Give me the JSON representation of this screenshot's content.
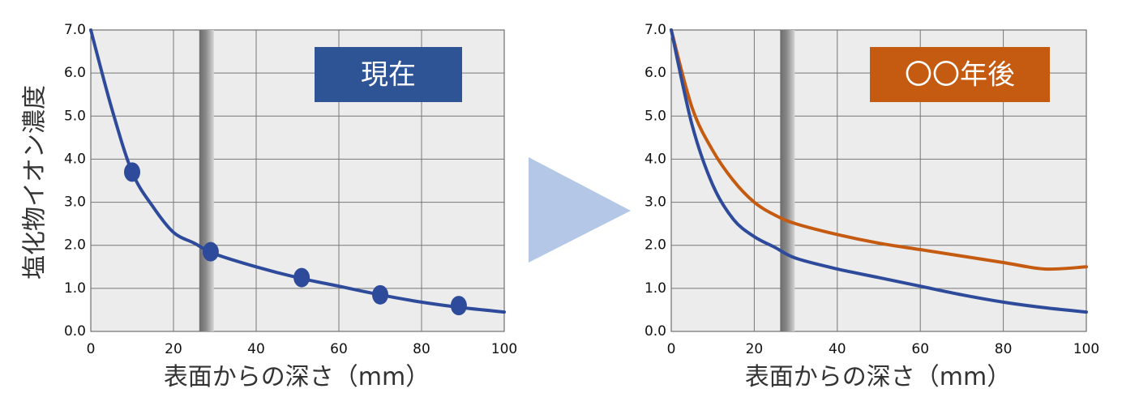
{
  "ylabel": "塩化物イオン濃度",
  "xlabel": "表面からの深さ（mm）",
  "arrow_color": "#b4c7e7",
  "chart_data": [
    {
      "type": "line",
      "badge": {
        "text": "現在",
        "color": "#2f5496"
      },
      "xlim": [
        0,
        100
      ],
      "ylim": [
        0,
        7
      ],
      "x_ticks": [
        0,
        20,
        40,
        60,
        80,
        100
      ],
      "y_ticks": [
        "0.0",
        "1.0",
        "2.0",
        "3.0",
        "4.0",
        "5.0",
        "6.0",
        "7.0"
      ],
      "grid": true,
      "rebar_x": 28,
      "series": [
        {
          "color": "#2e4a9a",
          "x": [
            0,
            5,
            10,
            15,
            20,
            25,
            30,
            40,
            50,
            60,
            70,
            80,
            90,
            100
          ],
          "y": [
            7.0,
            5.2,
            3.7,
            2.9,
            2.3,
            2.05,
            1.8,
            1.5,
            1.25,
            1.05,
            0.85,
            0.68,
            0.55,
            0.45
          ]
        }
      ],
      "points": [
        {
          "x": 10,
          "y": 3.7
        },
        {
          "x": 29,
          "y": 1.85
        },
        {
          "x": 51,
          "y": 1.25
        },
        {
          "x": 70,
          "y": 0.85
        },
        {
          "x": 89,
          "y": 0.6
        }
      ]
    },
    {
      "type": "line",
      "badge": {
        "text": "〇〇年後",
        "color": "#c55a11"
      },
      "xlim": [
        0,
        100
      ],
      "ylim": [
        0,
        7
      ],
      "x_ticks": [
        0,
        20,
        40,
        60,
        80,
        100
      ],
      "y_ticks": [
        "0.0",
        "1.0",
        "2.0",
        "3.0",
        "4.0",
        "5.0",
        "6.0",
        "7.0"
      ],
      "grid": true,
      "rebar_x": 28,
      "series": [
        {
          "color": "#c55a11",
          "x": [
            0,
            5,
            10,
            15,
            20,
            25,
            30,
            40,
            50,
            60,
            70,
            80,
            90,
            100
          ],
          "y": [
            7.0,
            5.2,
            4.2,
            3.5,
            3.0,
            2.7,
            2.5,
            2.25,
            2.05,
            1.9,
            1.75,
            1.6,
            1.45,
            1.5
          ]
        },
        {
          "color": "#2e4a9a",
          "x": [
            0,
            5,
            10,
            15,
            20,
            25,
            30,
            40,
            50,
            60,
            70,
            80,
            90,
            100
          ],
          "y": [
            7.0,
            4.8,
            3.4,
            2.6,
            2.2,
            1.95,
            1.7,
            1.45,
            1.25,
            1.05,
            0.85,
            0.68,
            0.55,
            0.45
          ]
        }
      ],
      "points": []
    }
  ]
}
